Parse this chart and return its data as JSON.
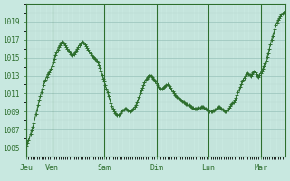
{
  "bg_color": "#c8e8e0",
  "plot_bg_color": "#c8e8e0",
  "line_color": "#2d6e2d",
  "marker_color": "#2d6e2d",
  "grid_major_color": "#a0c8c0",
  "grid_minor_color": "#b8d8d0",
  "tick_label_color": "#2d6e2d",
  "spine_color": "#2d6e2d",
  "ylim": [
    1004.5,
    1020.5
  ],
  "yticks": [
    1005,
    1007,
    1009,
    1011,
    1013,
    1015,
    1017,
    1019
  ],
  "day_labels": [
    "Jeu",
    "Ven",
    "Sam",
    "Dim",
    "Lun",
    "Mar"
  ],
  "y_values": [
    1005.2,
    1005.5,
    1005.8,
    1006.1,
    1006.5,
    1006.9,
    1007.3,
    1007.7,
    1008.2,
    1008.7,
    1009.2,
    1009.7,
    1010.2,
    1010.7,
    1011.1,
    1011.5,
    1011.9,
    1012.3,
    1012.6,
    1012.9,
    1013.2,
    1013.4,
    1013.6,
    1013.8,
    1014.1,
    1014.5,
    1014.9,
    1015.3,
    1015.6,
    1015.9,
    1016.2,
    1016.4,
    1016.6,
    1016.75,
    1016.7,
    1016.6,
    1016.4,
    1016.2,
    1016.0,
    1015.8,
    1015.6,
    1015.4,
    1015.3,
    1015.3,
    1015.4,
    1015.6,
    1015.8,
    1016.0,
    1016.2,
    1016.4,
    1016.6,
    1016.7,
    1016.75,
    1016.7,
    1016.5,
    1016.3,
    1016.1,
    1015.9,
    1015.7,
    1015.5,
    1015.3,
    1015.2,
    1015.1,
    1015.0,
    1014.9,
    1014.7,
    1014.5,
    1014.2,
    1013.9,
    1013.5,
    1013.1,
    1012.7,
    1012.3,
    1011.9,
    1011.5,
    1011.1,
    1010.7,
    1010.3,
    1009.9,
    1009.6,
    1009.3,
    1009.0,
    1008.8,
    1008.7,
    1008.6,
    1008.6,
    1008.7,
    1008.8,
    1009.0,
    1009.1,
    1009.2,
    1009.3,
    1009.3,
    1009.2,
    1009.1,
    1009.0,
    1009.0,
    1009.1,
    1009.2,
    1009.3,
    1009.5,
    1009.7,
    1010.0,
    1010.3,
    1010.6,
    1011.0,
    1011.3,
    1011.6,
    1011.9,
    1012.2,
    1012.5,
    1012.7,
    1012.9,
    1013.0,
    1013.1,
    1013.0,
    1012.9,
    1012.7,
    1012.5,
    1012.3,
    1012.1,
    1011.9,
    1011.7,
    1011.6,
    1011.5,
    1011.5,
    1011.6,
    1011.7,
    1011.8,
    1011.9,
    1012.0,
    1011.9,
    1011.8,
    1011.6,
    1011.4,
    1011.2,
    1011.0,
    1010.8,
    1010.7,
    1010.6,
    1010.5,
    1010.4,
    1010.3,
    1010.2,
    1010.1,
    1010.0,
    1009.9,
    1009.8,
    1009.8,
    1009.7,
    1009.7,
    1009.6,
    1009.5,
    1009.4,
    1009.4,
    1009.3,
    1009.3,
    1009.3,
    1009.3,
    1009.4,
    1009.4,
    1009.5,
    1009.5,
    1009.5,
    1009.4,
    1009.3,
    1009.2,
    1009.1,
    1009.1,
    1009.0,
    1009.0,
    1009.0,
    1009.1,
    1009.1,
    1009.2,
    1009.3,
    1009.4,
    1009.5,
    1009.5,
    1009.4,
    1009.3,
    1009.2,
    1009.1,
    1009.0,
    1009.0,
    1009.1,
    1009.2,
    1009.4,
    1009.6,
    1009.8,
    1009.9,
    1010.0,
    1010.2,
    1010.5,
    1010.8,
    1011.1,
    1011.4,
    1011.7,
    1012.0,
    1012.3,
    1012.6,
    1012.8,
    1013.0,
    1013.2,
    1013.3,
    1013.2,
    1013.1,
    1013.0,
    1013.2,
    1013.4,
    1013.5,
    1013.4,
    1013.2,
    1013.0,
    1012.9,
    1013.1,
    1013.3,
    1013.5,
    1013.8,
    1014.1,
    1014.4,
    1014.7,
    1015.1,
    1015.5,
    1016.0,
    1016.5,
    1017.0,
    1017.4,
    1017.8,
    1018.2,
    1018.6,
    1018.9,
    1019.2,
    1019.4,
    1019.6,
    1019.8,
    1019.9,
    1020.0,
    1020.1,
    1020.15
  ]
}
